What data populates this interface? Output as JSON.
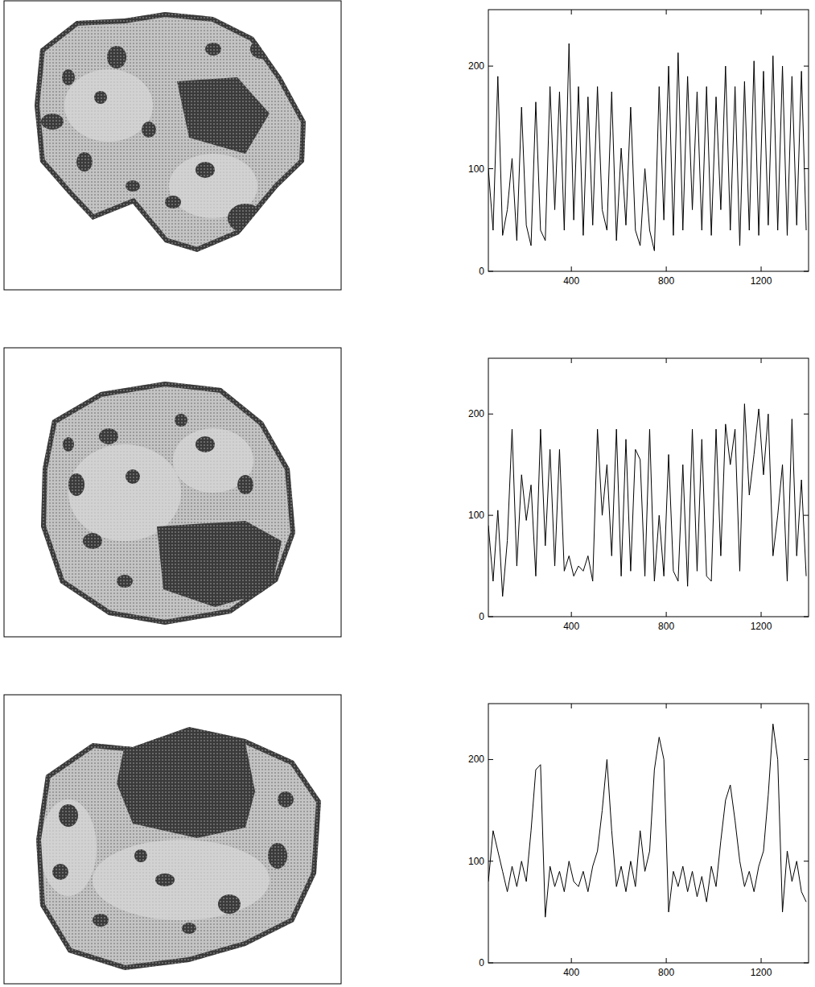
{
  "chart_data": [
    {
      "type": "line",
      "color": "#000000",
      "x": [
        50,
        70,
        90,
        110,
        130,
        150,
        170,
        190,
        210,
        230,
        250,
        270,
        290,
        310,
        330,
        350,
        370,
        390,
        410,
        430,
        450,
        470,
        490,
        510,
        530,
        550,
        570,
        590,
        610,
        630,
        650,
        670,
        690,
        710,
        730,
        750,
        770,
        790,
        810,
        830,
        850,
        870,
        890,
        910,
        930,
        950,
        970,
        990,
        1010,
        1030,
        1050,
        1070,
        1090,
        1110,
        1130,
        1150,
        1170,
        1190,
        1210,
        1230,
        1250,
        1270,
        1290,
        1310,
        1330,
        1350,
        1370,
        1390
      ],
      "values": [
        100,
        40,
        190,
        35,
        60,
        110,
        30,
        160,
        45,
        25,
        165,
        40,
        30,
        180,
        60,
        175,
        40,
        222,
        50,
        180,
        35,
        170,
        45,
        180,
        60,
        40,
        175,
        30,
        120,
        45,
        160,
        40,
        25,
        100,
        40,
        20,
        180,
        50,
        200,
        35,
        213,
        40,
        190,
        60,
        175,
        40,
        180,
        35,
        170,
        60,
        200,
        40,
        180,
        25,
        185,
        40,
        205,
        35,
        195,
        45,
        210,
        40,
        200,
        35,
        190,
        45,
        195,
        40
      ],
      "xlim": [
        50,
        1400
      ],
      "ylim": [
        0,
        255
      ],
      "xticks": [
        400,
        800,
        1200
      ],
      "yticks": [
        0,
        100,
        200
      ]
    },
    {
      "type": "line",
      "color": "#000000",
      "x": [
        50,
        70,
        90,
        110,
        130,
        150,
        170,
        190,
        210,
        230,
        250,
        270,
        290,
        310,
        330,
        350,
        370,
        390,
        410,
        430,
        450,
        470,
        490,
        510,
        530,
        550,
        570,
        590,
        610,
        630,
        650,
        670,
        690,
        710,
        730,
        750,
        770,
        790,
        810,
        830,
        850,
        870,
        890,
        910,
        930,
        950,
        970,
        990,
        1010,
        1030,
        1050,
        1070,
        1090,
        1110,
        1130,
        1150,
        1170,
        1190,
        1210,
        1230,
        1250,
        1270,
        1290,
        1310,
        1330,
        1350,
        1370,
        1390
      ],
      "values": [
        90,
        35,
        105,
        20,
        75,
        185,
        50,
        140,
        95,
        130,
        40,
        185,
        70,
        165,
        50,
        165,
        45,
        60,
        40,
        50,
        45,
        60,
        35,
        185,
        100,
        150,
        60,
        185,
        40,
        175,
        45,
        165,
        155,
        40,
        185,
        35,
        100,
        40,
        160,
        45,
        35,
        150,
        30,
        185,
        45,
        175,
        40,
        35,
        185,
        60,
        190,
        150,
        185,
        45,
        210,
        120,
        160,
        205,
        140,
        200,
        60,
        100,
        150,
        35,
        195,
        60,
        135,
        40
      ],
      "xlim": [
        50,
        1400
      ],
      "ylim": [
        0,
        255
      ],
      "xticks": [
        400,
        800,
        1200
      ],
      "yticks": [
        0,
        100,
        200
      ]
    },
    {
      "type": "line",
      "color": "#000000",
      "x": [
        50,
        70,
        90,
        110,
        130,
        150,
        170,
        190,
        210,
        230,
        250,
        270,
        290,
        310,
        330,
        350,
        370,
        390,
        410,
        430,
        450,
        470,
        490,
        510,
        530,
        550,
        570,
        590,
        610,
        630,
        650,
        670,
        690,
        710,
        730,
        750,
        770,
        790,
        810,
        830,
        850,
        870,
        890,
        910,
        930,
        950,
        970,
        990,
        1010,
        1030,
        1050,
        1070,
        1090,
        1110,
        1130,
        1150,
        1170,
        1190,
        1210,
        1230,
        1250,
        1270,
        1290,
        1310,
        1330,
        1350,
        1370,
        1390
      ],
      "values": [
        80,
        130,
        110,
        90,
        70,
        95,
        75,
        100,
        80,
        130,
        190,
        195,
        45,
        95,
        75,
        90,
        70,
        100,
        80,
        75,
        90,
        70,
        95,
        110,
        150,
        200,
        130,
        75,
        95,
        70,
        100,
        75,
        130,
        90,
        110,
        190,
        222,
        200,
        50,
        90,
        75,
        95,
        70,
        90,
        65,
        85,
        60,
        95,
        75,
        120,
        160,
        175,
        140,
        100,
        75,
        90,
        70,
        95,
        110,
        165,
        235,
        200,
        50,
        110,
        80,
        100,
        70,
        60
      ],
      "xlim": [
        50,
        1400
      ],
      "ylim": [
        0,
        255
      ],
      "xticks": [
        400,
        800,
        1200
      ],
      "yticks": [
        0,
        100,
        200
      ]
    }
  ]
}
